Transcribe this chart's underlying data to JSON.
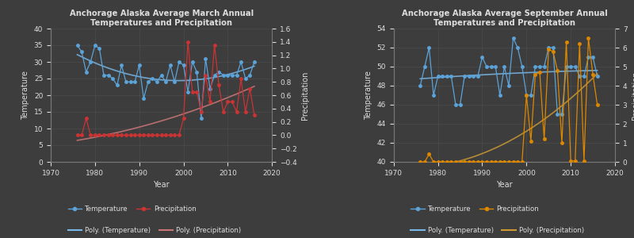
{
  "march": {
    "title": "Anchorage Alaska Average March Annual\nTemperatures and Precipitation",
    "years": [
      1976,
      1977,
      1978,
      1979,
      1980,
      1981,
      1982,
      1983,
      1984,
      1985,
      1986,
      1987,
      1988,
      1989,
      1990,
      1991,
      1992,
      1993,
      1994,
      1995,
      1996,
      1997,
      1998,
      1999,
      2000,
      2001,
      2002,
      2003,
      2004,
      2005,
      2006,
      2007,
      2008,
      2009,
      2010,
      2011,
      2012,
      2013,
      2014,
      2015,
      2016
    ],
    "temp": [
      35,
      33,
      27,
      30,
      35,
      34,
      26,
      26,
      25,
      23,
      29,
      24,
      24,
      24,
      29,
      19,
      24,
      25,
      24,
      26,
      24,
      29,
      24,
      30,
      29,
      21,
      30,
      27,
      13,
      31,
      22,
      26,
      27,
      26,
      26,
      26,
      26,
      30,
      25,
      26,
      30
    ],
    "precip": [
      0,
      0,
      0.25,
      0,
      0,
      0,
      0,
      0,
      0,
      0,
      0,
      0,
      0,
      0,
      0,
      0,
      0,
      0,
      0,
      0,
      0,
      0,
      0,
      0,
      0.25,
      1.4,
      0.65,
      0.65,
      0.35,
      0.9,
      0.5,
      1.35,
      0.75,
      0.35,
      0.5,
      0.5,
      0.35,
      0.85,
      0.35,
      0.7,
      0.3
    ],
    "temp_ylim": [
      0,
      40
    ],
    "precip_ylim": [
      -0.4,
      1.6
    ],
    "temp_yticks": [
      0,
      5,
      10,
      15,
      20,
      25,
      30,
      35,
      40
    ],
    "precip_yticks": [
      -0.4,
      -0.2,
      0.0,
      0.2,
      0.4,
      0.6,
      0.8,
      1.0,
      1.2,
      1.4,
      1.6
    ],
    "temp_color": "#5ba3d9",
    "precip_color": "#cc3333",
    "poly_temp_color": "#7ab8e8",
    "poly_precip_color": "#cc7777",
    "bg_color": "#3d3d3d",
    "text_color": "#dddddd",
    "grid_color": "#555555"
  },
  "september": {
    "title": "Anchorage Alaska Average September Annual\nTemperatures and Precipitation",
    "years": [
      1976,
      1977,
      1978,
      1979,
      1980,
      1981,
      1982,
      1983,
      1984,
      1985,
      1986,
      1987,
      1988,
      1989,
      1990,
      1991,
      1992,
      1993,
      1994,
      1995,
      1996,
      1997,
      1998,
      1999,
      2000,
      2001,
      2002,
      2003,
      2004,
      2005,
      2006,
      2007,
      2008,
      2009,
      2010,
      2011,
      2012,
      2013,
      2014,
      2015,
      2016
    ],
    "temp": [
      48,
      50,
      52,
      47,
      49,
      49,
      49,
      49,
      46,
      46,
      49,
      49,
      49,
      49,
      51,
      50,
      50,
      50,
      47,
      50,
      48,
      53,
      52,
      50,
      47,
      47,
      50,
      50,
      50,
      52,
      52,
      45,
      45,
      50,
      50,
      50,
      49,
      49,
      51,
      51,
      49
    ],
    "precip": [
      0,
      0,
      0.4,
      0,
      0,
      0,
      0,
      0,
      0,
      0,
      0,
      0,
      0,
      0,
      0,
      0,
      0,
      0,
      0,
      0,
      0,
      0,
      0,
      0,
      3.5,
      1.1,
      4.6,
      4.7,
      1.2,
      5.9,
      5.8,
      4.8,
      1.0,
      6.3,
      0.05,
      0.05,
      6.2,
      0.05,
      6.5,
      4.6,
      3.0
    ],
    "temp_ylim": [
      40,
      54
    ],
    "precip_ylim": [
      0,
      7
    ],
    "temp_yticks": [
      40,
      42,
      44,
      46,
      48,
      50,
      52,
      54
    ],
    "precip_yticks": [
      0,
      1,
      2,
      3,
      4,
      5,
      6,
      7
    ],
    "temp_color": "#5ba3d9",
    "precip_color": "#dd8800",
    "poly_temp_color": "#7ab8e8",
    "poly_precip_color": "#cc9933",
    "bg_color": "#3d3d3d",
    "text_color": "#dddddd",
    "grid_color": "#555555"
  },
  "fig_bg": "#3d3d3d",
  "xlim": [
    1970,
    2020
  ],
  "xticks": [
    1970,
    1980,
    1990,
    2000,
    2010,
    2020
  ]
}
